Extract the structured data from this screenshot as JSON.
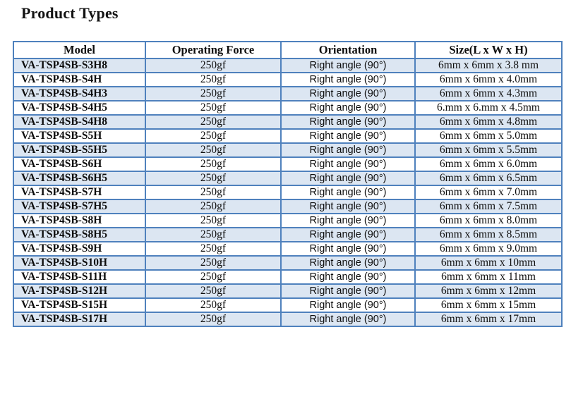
{
  "title": "Product Types",
  "colors": {
    "table_border": "#4f81bd",
    "row_shading": "#dce6f2",
    "row_plain": "#ffffff",
    "text": "#0d0d0d"
  },
  "table": {
    "columns": [
      "Model",
      "Operating Force",
      "Orientation",
      "Size(L x W x H)"
    ],
    "rows": [
      {
        "model": "VA-TSP4SB-S3H8",
        "operating_force": "250gf",
        "orientation": "Right angle (90°)",
        "size": "6mm x 6mm x 3.8 mm"
      },
      {
        "model": "VA-TSP4SB-S4H",
        "operating_force": "250gf",
        "orientation": "Right angle (90°)",
        "size": "6mm x 6mm x 4.0mm"
      },
      {
        "model": "VA-TSP4SB-S4H3",
        "operating_force": "250gf",
        "orientation": "Right angle (90°)",
        "size": "6mm x 6mm x 4.3mm"
      },
      {
        "model": "VA-TSP4SB-S4H5",
        "operating_force": "250gf",
        "orientation": "Right angle (90°)",
        "size": "6.mm x 6.mm x 4.5mm"
      },
      {
        "model": "VA-TSP4SB-S4H8",
        "operating_force": "250gf",
        "orientation": "Right angle (90°)",
        "size": "6mm x 6mm x 4.8mm"
      },
      {
        "model": "VA-TSP4SB-S5H",
        "operating_force": "250gf",
        "orientation": "Right angle (90°)",
        "size": "6mm x 6mm x 5.0mm"
      },
      {
        "model": "VA-TSP4SB-S5H5",
        "operating_force": "250gf",
        "orientation": "Right angle (90°)",
        "size": "6mm x 6mm x 5.5mm"
      },
      {
        "model": "VA-TSP4SB-S6H",
        "operating_force": "250gf",
        "orientation": "Right angle (90°)",
        "size": "6mm x 6mm x 6.0mm"
      },
      {
        "model": "VA-TSP4SB-S6H5",
        "operating_force": "250gf",
        "orientation": "Right angle (90°)",
        "size": "6mm x 6mm x 6.5mm"
      },
      {
        "model": "VA-TSP4SB-S7H",
        "operating_force": "250gf",
        "orientation": "Right angle (90°)",
        "size": "6mm x 6mm x 7.0mm"
      },
      {
        "model": "VA-TSP4SB-S7H5",
        "operating_force": "250gf",
        "orientation": "Right angle (90°)",
        "size": "6mm x 6mm x 7.5mm"
      },
      {
        "model": "VA-TSP4SB-S8H",
        "operating_force": "250gf",
        "orientation": "Right angle (90°)",
        "size": "6mm x 6mm x 8.0mm"
      },
      {
        "model": "VA-TSP4SB-S8H5",
        "operating_force": "250gf",
        "orientation": "Right angle (90°)",
        "size": "6mm x 6mm x 8.5mm"
      },
      {
        "model": "VA-TSP4SB-S9H",
        "operating_force": "250gf",
        "orientation": "Right angle (90°)",
        "size": "6mm x 6mm x 9.0mm"
      },
      {
        "model": "VA-TSP4SB-S10H",
        "operating_force": "250gf",
        "orientation": "Right angle (90°)",
        "size": "6mm x 6mm x 10mm"
      },
      {
        "model": "VA-TSP4SB-S11H",
        "operating_force": "250gf",
        "orientation": "Right angle (90°)",
        "size": "6mm x 6mm x 11mm"
      },
      {
        "model": "VA-TSP4SB-S12H",
        "operating_force": "250gf",
        "orientation": "Right angle (90°)",
        "size": "6mm x 6mm x 12mm"
      },
      {
        "model": "VA-TSP4SB-S15H",
        "operating_force": "250gf",
        "orientation": "Right angle (90°)",
        "size": "6mm x 6mm x 15mm"
      },
      {
        "model": "VA-TSP4SB-S17H",
        "operating_force": "250gf",
        "orientation": "Right angle (90°)",
        "size": "6mm x 6mm x 17mm"
      }
    ]
  }
}
